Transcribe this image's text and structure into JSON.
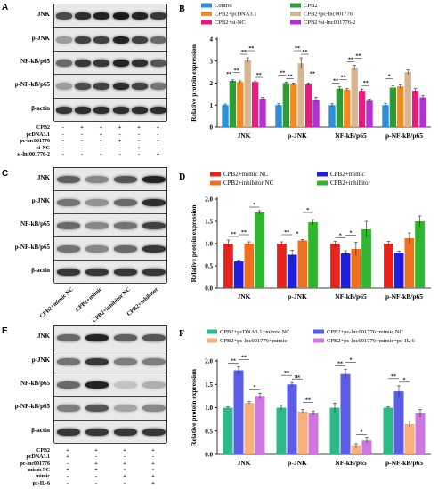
{
  "panels": {
    "A": {
      "letter": "A",
      "rows": [
        "JNK",
        "p-JNK",
        "NF-kB/p65",
        "p-NF-kB/p65",
        "β-actin"
      ],
      "conditions": [
        {
          "label": "CPB2",
          "marks": [
            "-",
            "+",
            "+",
            "+",
            "+",
            "+"
          ]
        },
        {
          "label": "pcDNA3.1",
          "marks": [
            "-",
            "-",
            "+",
            "-",
            "-",
            "-"
          ]
        },
        {
          "label": "pc-lnc001776",
          "marks": [
            "-",
            "-",
            "-",
            "+",
            "-",
            "-"
          ]
        },
        {
          "label": "si-NC",
          "marks": [
            "-",
            "-",
            "-",
            "-",
            "+",
            "-"
          ]
        },
        {
          "label": "si-lnc001776-2",
          "marks": [
            "-",
            "-",
            "-",
            "-",
            "-",
            "+"
          ]
        }
      ]
    },
    "C": {
      "letter": "C",
      "rows": [
        "JNK",
        "p-JNK",
        "NF-kB/p65",
        "p-NF-kB/p65",
        "β-actin"
      ],
      "lanes": [
        "CPB2+mimic NC",
        "CPB2+mimic",
        "CPB2+inhibitor NC",
        "CPB2+inhibitor"
      ]
    },
    "E": {
      "letter": "E",
      "rows": [
        "JNK",
        "p-JNK",
        "NF-kB/p65",
        "p-NF-kB/p65",
        "β-actin"
      ],
      "conditions": [
        {
          "label": "CPB2",
          "marks": [
            "+",
            "+",
            "+",
            "+"
          ]
        },
        {
          "label": "pcDNA3.1",
          "marks": [
            "+",
            "-",
            "-",
            "-"
          ]
        },
        {
          "label": "pc-lnc001776",
          "marks": [
            "-",
            "+",
            "+",
            "+"
          ]
        },
        {
          "label": "mimicNC",
          "marks": [
            "+",
            "+",
            "-",
            "-"
          ]
        },
        {
          "label": "mimic",
          "marks": [
            "-",
            "-",
            "+",
            "+"
          ]
        },
        {
          "label": "pc-IL-6",
          "marks": [
            "-",
            "-",
            "-",
            "+"
          ]
        }
      ]
    }
  },
  "chart_data": [
    {
      "panel": "B",
      "type": "bar",
      "ylabel": "Relative protein expression",
      "ylim": [
        0,
        4
      ],
      "yticks": [
        "0",
        "1",
        "2",
        "3",
        "4"
      ],
      "categories": [
        "JNK",
        "p-JNK",
        "NF-kB/p65",
        "p-NF-kB/p65"
      ],
      "legend_position": "top",
      "series": [
        {
          "name": "Control",
          "color": "#2e8fd6",
          "values": [
            1.0,
            1.0,
            1.0,
            1.0
          ],
          "errors": [
            0.05,
            0.06,
            0.06,
            0.08
          ]
        },
        {
          "name": "CPB2",
          "color": "#2e9a3a",
          "values": [
            2.1,
            2.0,
            1.75,
            1.8
          ],
          "errors": [
            0.05,
            0.05,
            0.08,
            0.08
          ]
        },
        {
          "name": "CPB2+pcDNA3.1",
          "color": "#f08a24",
          "values": [
            2.05,
            1.95,
            1.7,
            1.85
          ],
          "errors": [
            0.05,
            0.05,
            0.05,
            0.08
          ]
        },
        {
          "name": "CPB2+pc-lnc001776",
          "color": "#d8b58f",
          "values": [
            3.05,
            2.9,
            2.7,
            2.5
          ],
          "errors": [
            0.1,
            0.25,
            0.1,
            0.1
          ]
        },
        {
          "name": "CPB2+si-NC",
          "color": "#e8197f",
          "values": [
            2.05,
            1.95,
            1.65,
            1.65
          ],
          "errors": [
            0.05,
            0.05,
            0.08,
            0.1
          ]
        },
        {
          "name": "CPB2+si-lnc001776-2",
          "color": "#b42fd6",
          "values": [
            1.3,
            1.25,
            1.2,
            1.35
          ],
          "errors": [
            0.05,
            0.1,
            0.08,
            0.08
          ]
        }
      ],
      "annotations": [
        "**",
        "**",
        "**",
        "**",
        "**",
        "**",
        "**",
        "**",
        "**",
        "**",
        "**",
        "**",
        "**",
        "**",
        "**",
        "*"
      ]
    },
    {
      "panel": "D",
      "type": "bar",
      "ylabel": "Relative protein expression",
      "ylim": [
        0,
        2.0
      ],
      "yticks": [
        "0.0",
        "0.5",
        "1.0",
        "1.5",
        "2.0"
      ],
      "categories": [
        "JNK",
        "p-JNK",
        "NF-kB/p65",
        "p-NF-kB/p65"
      ],
      "legend_position": "top",
      "series": [
        {
          "name": "CPB2+mimic NC",
          "color": "#e8231e",
          "values": [
            1.0,
            1.0,
            1.0,
            1.0
          ],
          "errors": [
            0.08,
            0.04,
            0.05,
            0.05
          ]
        },
        {
          "name": "CPB2+mimic",
          "color": "#1f1fe0",
          "values": [
            0.6,
            0.75,
            0.78,
            0.8
          ],
          "errors": [
            0.03,
            0.1,
            0.06,
            0.03
          ]
        },
        {
          "name": "CPB2+inhibitor NC",
          "color": "#f07020",
          "values": [
            1.0,
            1.07,
            0.88,
            1.12
          ],
          "errors": [
            0.04,
            0.02,
            0.15,
            0.12
          ]
        },
        {
          "name": "CPB2+inhibitor",
          "color": "#2fb52f",
          "values": [
            1.7,
            1.48,
            1.32,
            1.5
          ],
          "errors": [
            0.04,
            0.06,
            0.18,
            0.12
          ]
        }
      ],
      "annotations": [
        "**",
        "**",
        "*",
        "**",
        "*",
        "*",
        "*",
        "*"
      ]
    },
    {
      "panel": "F",
      "type": "bar",
      "ylabel": "Relative protein expression",
      "ylim": [
        0.0,
        2.0
      ],
      "yticks": [
        "0.0",
        "0.5",
        "1.0",
        "1.5",
        "2.0"
      ],
      "categories": [
        "JNK",
        "p-JNK",
        "NF-kB/p65",
        "p-NF-kB/p65"
      ],
      "legend_position": "top",
      "series": [
        {
          "name": "CPB2+pcDNA3.1+mimic NC",
          "color": "#2db98a",
          "values": [
            1.0,
            1.0,
            1.0,
            1.0
          ],
          "errors": [
            0.02,
            0.05,
            0.1,
            0.02
          ]
        },
        {
          "name": "CPB2+pc-lnc001776+mimic NC",
          "color": "#5b5ce8",
          "values": [
            1.8,
            1.5,
            1.72,
            1.35
          ],
          "errors": [
            0.08,
            0.04,
            0.1,
            0.12
          ]
        },
        {
          "name": "CPB2+pc-lnc001776+mimic",
          "color": "#f7b07a",
          "values": [
            1.1,
            0.92,
            0.18,
            0.65
          ],
          "errors": [
            0.03,
            0.04,
            0.05,
            0.06
          ]
        },
        {
          "name": "CPB2+pc-lnc001776+mimic+pc-IL-6",
          "color": "#d076e0",
          "values": [
            1.25,
            0.88,
            0.3,
            0.88
          ],
          "errors": [
            0.06,
            0.05,
            0.05,
            0.08
          ]
        }
      ],
      "annotations": [
        "**",
        "**",
        "*",
        "**",
        "ns",
        "**",
        "**",
        "*",
        "*",
        "**",
        "*"
      ]
    }
  ]
}
